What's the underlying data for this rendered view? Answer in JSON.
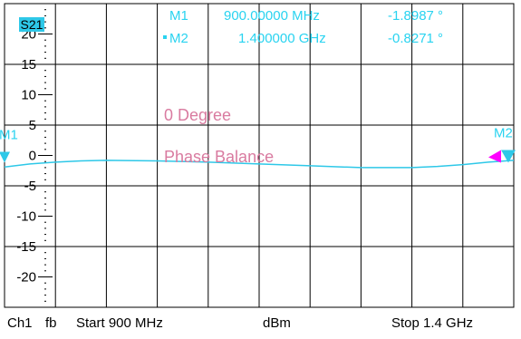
{
  "colors": {
    "background": "#ffffff",
    "grid": "#000000",
    "trace": "#2ec8e8",
    "marker_text": "#29d3f0",
    "annotation": "#d97ba0",
    "badge_bg": "#2ec8e8",
    "marker_m2_fill": "#ff00ff"
  },
  "trace_label": "S21",
  "markers": [
    {
      "id": "M1",
      "label": "M1",
      "freq_text": "900.00000 MHz",
      "value_text": "-1.8987 °",
      "x_mhz": 900,
      "y": 0
    },
    {
      "id": "M2",
      "label": "M2",
      "freq_text": "1.400000 GHz",
      "value_text": "-0.8271 °",
      "x_mhz": 1400,
      "y": 0
    }
  ],
  "annotations": {
    "line1": "0 Degree",
    "line2": "Phase Balance"
  },
  "footer": {
    "channel": "Ch1",
    "format": "fb",
    "start": "Start  900 MHz",
    "unit": "dBm",
    "stop": "Stop  1.4 GHz"
  },
  "chart_data": {
    "type": "line",
    "xlim": [
      900,
      1400
    ],
    "ylim": [
      -25,
      25
    ],
    "y_ticks": [
      20,
      15,
      10,
      5,
      0,
      -5,
      -10,
      -15,
      -20
    ],
    "y_tick_labels": [
      "20",
      "15",
      "10",
      "5",
      "0",
      "-5",
      "-10",
      "-15",
      "-20"
    ],
    "x_divisions": 10,
    "grid": true,
    "series": [
      {
        "x": [
          900,
          925,
          950,
          975,
          1000,
          1050,
          1100,
          1150,
          1200,
          1250,
          1300,
          1325,
          1350,
          1375,
          1400
        ],
        "y": [
          -1.9,
          -1.4,
          -1.1,
          -0.9,
          -0.8,
          -0.9,
          -1.1,
          -1.4,
          -1.7,
          -2.0,
          -2.0,
          -1.8,
          -1.5,
          -1.1,
          -0.8
        ]
      }
    ]
  }
}
